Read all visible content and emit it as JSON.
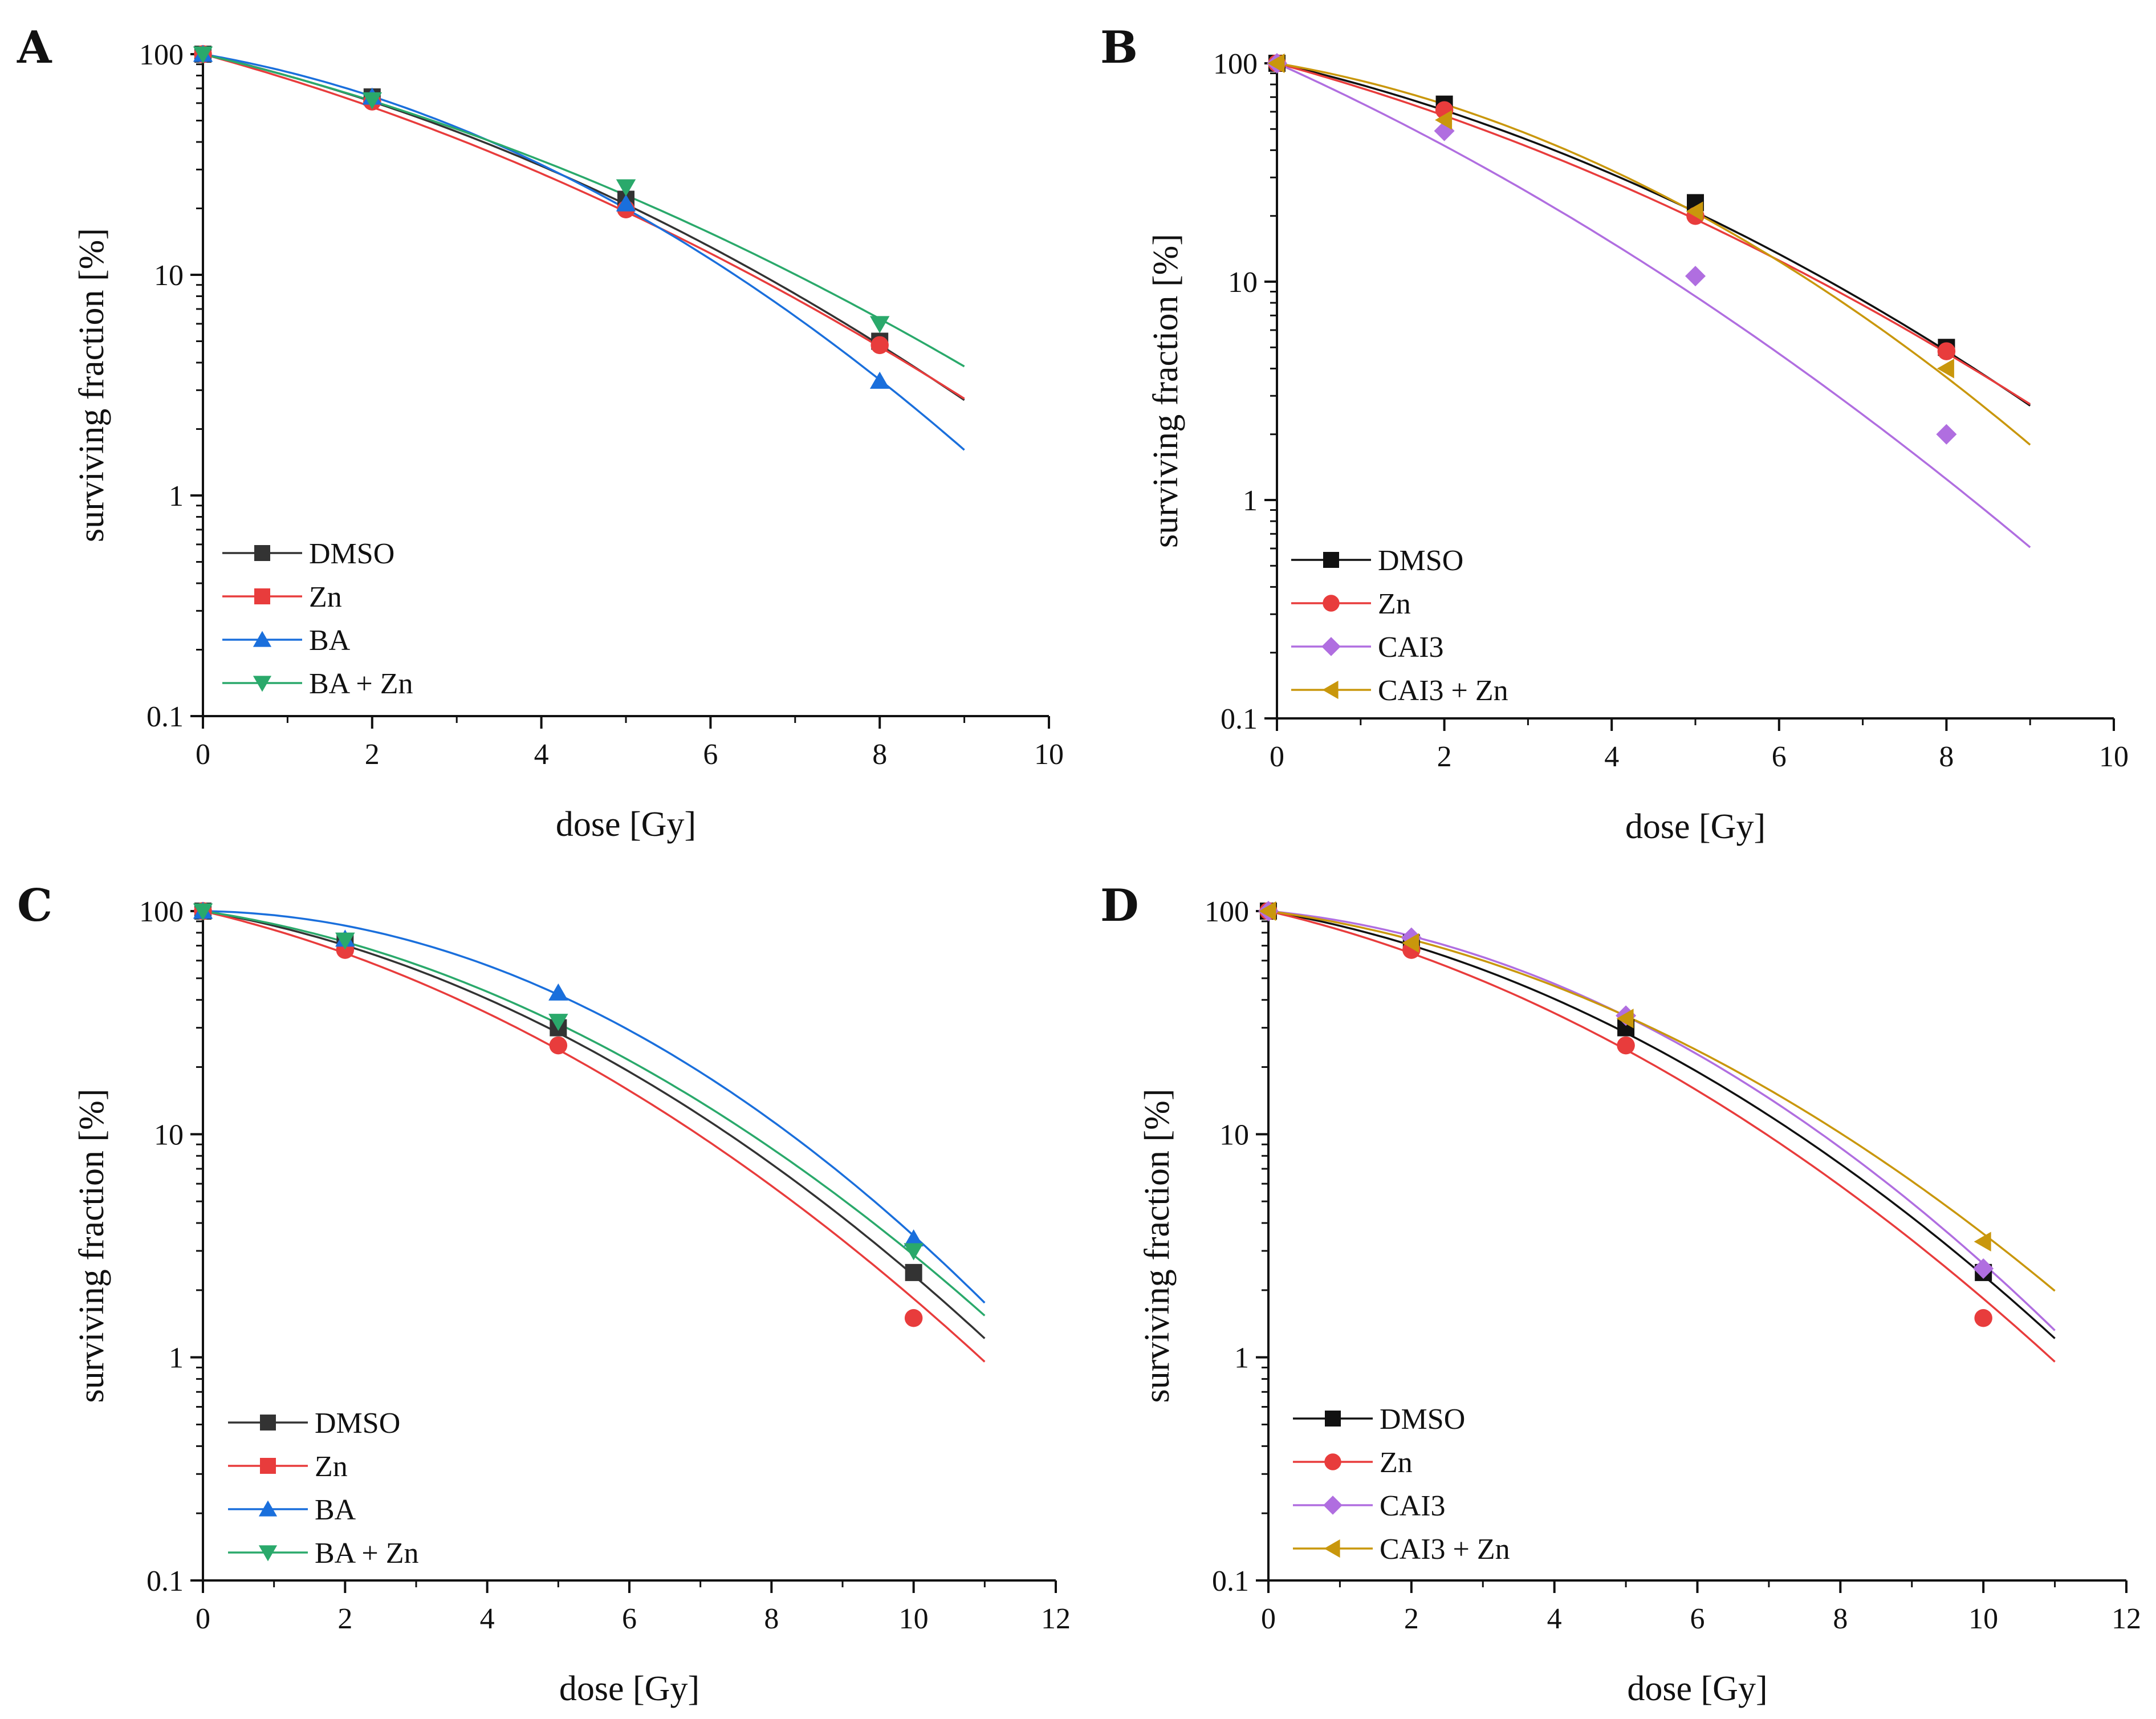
{
  "chart_data": [
    {
      "panel": "A",
      "type": "scatter",
      "xlabel": "dose [Gy]",
      "ylabel": "surviving fraction [%]",
      "xlim": [
        0,
        10
      ],
      "ylim": [
        0.1,
        100
      ],
      "yscale": "log",
      "xticks": [
        0,
        2,
        4,
        6,
        8,
        10
      ],
      "yticks": [
        {
          "v": 0.1,
          "label": "0.1"
        },
        {
          "v": 1,
          "label": "1"
        },
        {
          "v": 10,
          "label": "10"
        },
        {
          "v": 100,
          "label": "100"
        }
      ],
      "legend_position": "bottom-left",
      "series": [
        {
          "name": "DMSO",
          "color": "#333333",
          "marker": "square",
          "x": [
            0,
            2,
            5,
            8
          ],
          "y": [
            100,
            64,
            22,
            5
          ],
          "fit": {
            "alpha": 0.204,
            "beta": 0.0219,
            "xmax": 9
          }
        },
        {
          "name": "Zn",
          "color": "#e83c3c",
          "marker": "circle",
          "legend_marker": "square",
          "x": [
            0,
            2,
            5,
            8
          ],
          "y": [
            100,
            61,
            19.8,
            4.8
          ],
          "fit": {
            "alpha": 0.241,
            "beta": 0.0176,
            "xmax": 9
          }
        },
        {
          "name": "BA",
          "color": "#1a6fdc",
          "marker": "triangle-up",
          "x": [
            0,
            2,
            5,
            8
          ],
          "y": [
            100,
            64,
            21,
            3.3
          ],
          "fit": {
            "alpha": 0.152,
            "beta": 0.0341,
            "xmax": 9
          }
        },
        {
          "name": "BA + Zn",
          "color": "#2aa96b",
          "marker": "triangle-down",
          "x": [
            0,
            2,
            5,
            8
          ],
          "y": [
            100,
            62,
            25,
            6
          ],
          "fit": {
            "alpha": 0.21,
            "beta": 0.0169,
            "xmax": 9
          }
        }
      ]
    },
    {
      "panel": "B",
      "type": "scatter",
      "xlabel": "dose [Gy]",
      "ylabel": "surviving fraction [%]",
      "xlim": [
        0,
        10
      ],
      "ylim": [
        0.1,
        100
      ],
      "yscale": "log",
      "xticks": [
        0,
        2,
        4,
        6,
        8,
        10
      ],
      "yticks": [
        {
          "v": 0.1,
          "label": "0.1"
        },
        {
          "v": 1,
          "label": "1"
        },
        {
          "v": 10,
          "label": "10"
        },
        {
          "v": 100,
          "label": "100"
        }
      ],
      "legend_position": "bottom-left",
      "series": [
        {
          "name": "DMSO",
          "color": "#111111",
          "marker": "square",
          "x": [
            0,
            2,
            5,
            8
          ],
          "y": [
            100,
            65,
            23,
            5
          ],
          "fit": {
            "alpha": 0.204,
            "beta": 0.0219,
            "xmax": 9
          }
        },
        {
          "name": "Zn",
          "color": "#e83c3c",
          "marker": "circle",
          "x": [
            0,
            2,
            5,
            8
          ],
          "y": [
            100,
            61,
            20,
            4.8
          ],
          "fit": {
            "alpha": 0.241,
            "beta": 0.0176,
            "xmax": 9
          }
        },
        {
          "name": "CAI3",
          "color": "#b06ee0",
          "marker": "diamond",
          "x": [
            0,
            2,
            5,
            8
          ],
          "y": [
            100,
            49,
            10.6,
            2
          ],
          "fit": {
            "alpha": 0.397,
            "beta": 0.0189,
            "xmax": 9
          }
        },
        {
          "name": "CAI3 + Zn",
          "color": "#c9970c",
          "marker": "triangle-left",
          "x": [
            0,
            2,
            5,
            8
          ],
          "y": [
            100,
            55,
            21,
            4
          ],
          "fit": {
            "alpha": 0.15,
            "beta": 0.033,
            "xmax": 9
          }
        }
      ]
    },
    {
      "panel": "C",
      "type": "scatter",
      "xlabel": "dose [Gy]",
      "ylabel": "surviving fraction [%]",
      "xlim": [
        0,
        12
      ],
      "ylim": [
        0.1,
        100
      ],
      "yscale": "log",
      "xticks": [
        0,
        2,
        4,
        6,
        8,
        10,
        12
      ],
      "yticks": [
        {
          "v": 0.1,
          "label": "0.1"
        },
        {
          "v": 1,
          "label": "1"
        },
        {
          "v": 10,
          "label": "10"
        },
        {
          "v": 100,
          "label": "100"
        }
      ],
      "legend_position": "bottom-left",
      "series": [
        {
          "name": "DMSO",
          "color": "#333333",
          "marker": "square",
          "x": [
            0,
            2,
            5,
            10
          ],
          "y": [
            100,
            72,
            30,
            2.4
          ],
          "fit": {
            "alpha": 0.127,
            "beta": 0.0249,
            "xmax": 11
          }
        },
        {
          "name": "Zn",
          "color": "#e83c3c",
          "marker": "circle",
          "legend_marker": "square",
          "x": [
            0,
            2,
            5,
            10
          ],
          "y": [
            100,
            67,
            25,
            1.5
          ],
          "fit": {
            "alpha": 0.172,
            "beta": 0.0228,
            "xmax": 11
          }
        },
        {
          "name": "BA",
          "color": "#1a6fdc",
          "marker": "triangle-up",
          "x": [
            0,
            2,
            5,
            10
          ],
          "y": [
            100,
            75,
            43,
            3.4
          ],
          "fit": {
            "alpha": 0.01,
            "beta": 0.0325,
            "xmax": 11
          }
        },
        {
          "name": "BA + Zn",
          "color": "#2aa96b",
          "marker": "triangle-down",
          "x": [
            0,
            2,
            5,
            10
          ],
          "y": [
            100,
            74,
            32,
            3
          ],
          "fit": {
            "alpha": 0.11,
            "beta": 0.0245,
            "xmax": 11
          }
        }
      ]
    },
    {
      "panel": "D",
      "type": "scatter",
      "xlabel": "dose [Gy]",
      "ylabel": "surviving fraction [%]",
      "xlim": [
        0,
        12
      ],
      "ylim": [
        0.1,
        100
      ],
      "yscale": "log",
      "xticks": [
        0,
        2,
        4,
        6,
        8,
        10,
        12
      ],
      "yticks": [
        {
          "v": 0.1,
          "label": "0.1"
        },
        {
          "v": 1,
          "label": "1"
        },
        {
          "v": 10,
          "label": "10"
        },
        {
          "v": 100,
          "label": "100"
        }
      ],
      "legend_position": "bottom-left",
      "series": [
        {
          "name": "DMSO",
          "color": "#111111",
          "marker": "square",
          "x": [
            0,
            2,
            5,
            10
          ],
          "y": [
            100,
            72,
            30,
            2.4
          ],
          "fit": {
            "alpha": 0.127,
            "beta": 0.0249,
            "xmax": 11
          }
        },
        {
          "name": "Zn",
          "color": "#e83c3c",
          "marker": "circle",
          "x": [
            0,
            2,
            5,
            10
          ],
          "y": [
            100,
            67,
            25,
            1.5
          ],
          "fit": {
            "alpha": 0.172,
            "beta": 0.0228,
            "xmax": 11
          }
        },
        {
          "name": "CAI3",
          "color": "#b06ee0",
          "marker": "diamond",
          "x": [
            0,
            2,
            5,
            10
          ],
          "y": [
            100,
            76,
            34,
            2.5
          ],
          "fit": {
            "alpha": 0.07,
            "beta": 0.0294,
            "xmax": 11
          }
        },
        {
          "name": "CAI3 + Zn",
          "color": "#c9970c",
          "marker": "triangle-left",
          "x": [
            0,
            2,
            5,
            10
          ],
          "y": [
            100,
            72,
            33,
            3.3
          ],
          "fit": {
            "alpha": 0.1,
            "beta": 0.0233,
            "xmax": 11
          }
        }
      ]
    }
  ]
}
